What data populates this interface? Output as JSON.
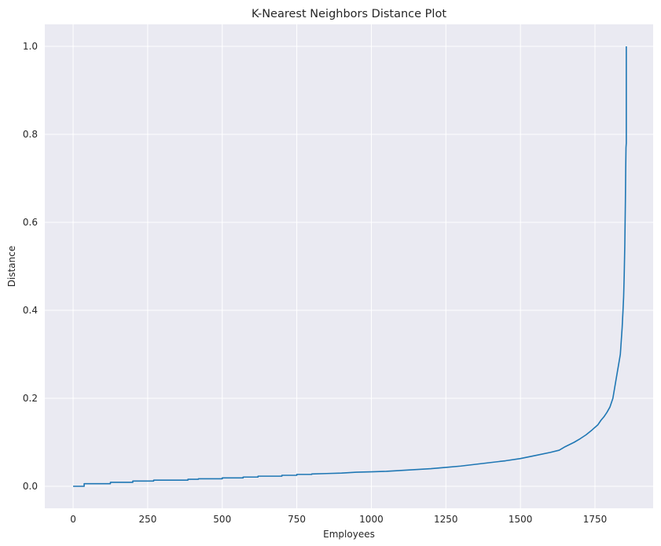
{
  "chart_data": {
    "type": "line",
    "title": "K-Nearest Neighbors Distance Plot",
    "xlabel": "Employees",
    "ylabel": "Distance",
    "xlim": [
      -95,
      1945
    ],
    "ylim": [
      -0.05,
      1.05
    ],
    "xticks": [
      0,
      250,
      500,
      750,
      1000,
      1250,
      1500,
      1750
    ],
    "yticks": [
      0.0,
      0.2,
      0.4,
      0.6,
      0.8,
      1.0
    ],
    "xtick_labels": [
      "0",
      "250",
      "500",
      "750",
      "1000",
      "1250",
      "1500",
      "1750"
    ],
    "ytick_labels": [
      "0.0",
      "0.2",
      "0.4",
      "0.6",
      "0.8",
      "1.0"
    ],
    "grid": true,
    "background": "#eaeaf2",
    "line_color": "#1f77b4",
    "series": [
      {
        "x": [
          0,
          37,
          37,
          125,
          125,
          200,
          200,
          270,
          270,
          385,
          385,
          420,
          420,
          500,
          500,
          570,
          570,
          620,
          620,
          700,
          700,
          750,
          750,
          800,
          800,
          850,
          900,
          950,
          1000,
          1050,
          1100,
          1150,
          1200,
          1250,
          1300,
          1350,
          1400,
          1450,
          1500,
          1550,
          1600,
          1630,
          1650,
          1680,
          1700,
          1720,
          1740,
          1760,
          1770,
          1780,
          1790,
          1800,
          1810,
          1815,
          1820,
          1825,
          1830,
          1835,
          1838,
          1841,
          1844,
          1846,
          1848,
          1850,
          1852,
          1853,
          1854,
          1855,
          1855
        ],
        "y": [
          0.0,
          0.0,
          0.006,
          0.006,
          0.009,
          0.009,
          0.012,
          0.012,
          0.014,
          0.014,
          0.016,
          0.016,
          0.017,
          0.017,
          0.019,
          0.019,
          0.021,
          0.021,
          0.023,
          0.023,
          0.025,
          0.025,
          0.027,
          0.027,
          0.028,
          0.029,
          0.03,
          0.032,
          0.033,
          0.034,
          0.036,
          0.038,
          0.04,
          0.043,
          0.046,
          0.05,
          0.054,
          0.058,
          0.063,
          0.07,
          0.077,
          0.082,
          0.09,
          0.1,
          0.108,
          0.117,
          0.128,
          0.14,
          0.15,
          0.158,
          0.168,
          0.18,
          0.2,
          0.22,
          0.24,
          0.26,
          0.28,
          0.3,
          0.33,
          0.36,
          0.4,
          0.43,
          0.48,
          0.55,
          0.65,
          0.72,
          0.77,
          0.78,
          1.0
        ]
      }
    ]
  }
}
